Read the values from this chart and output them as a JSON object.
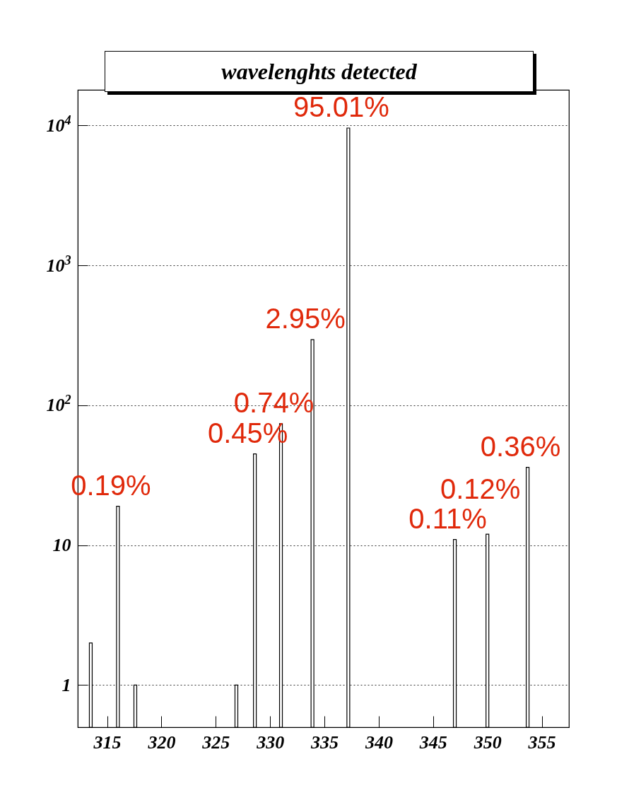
{
  "chart_data": {
    "type": "bar",
    "title": "wavelenghts detected",
    "x": [
      313.5,
      316.0,
      317.6,
      326.9,
      328.6,
      331.0,
      333.9,
      337.2,
      347.0,
      350.0,
      353.7
    ],
    "series": [
      {
        "color": "#000000",
        "values": [
          2,
          19,
          1,
          1,
          45,
          74,
          295,
          9600,
          11,
          12,
          36
        ]
      }
    ],
    "log": "y",
    "xlim": [
      312.3,
      357.5
    ],
    "xticks": [
      315,
      320,
      325,
      330,
      335,
      340,
      345,
      350,
      355
    ],
    "ylim": [
      0.5,
      18000
    ],
    "yticks": [
      1,
      10,
      {
        "value": 100,
        "label": "10$^{2}$"
      },
      {
        "value": 1000,
        "label": "10$^{3}$"
      },
      {
        "value": 10000,
        "label": "10$^{4}$"
      }
    ],
    "grid": "y",
    "annotations": [
      {
        "text": "0.19%",
        "x": 316.0,
        "y": 19
      },
      {
        "text": "0.45%",
        "x": 328.6,
        "y": 45
      },
      {
        "text": "0.74%",
        "x": 331.0,
        "y": 74
      },
      {
        "text": "2.95%",
        "x": 333.9,
        "y": 295
      },
      {
        "text": "95.01%",
        "x": 337.2,
        "y": 9600
      },
      {
        "text": "0.11%",
        "x": 347.0,
        "y": 11
      },
      {
        "text": "0.12%",
        "x": 350.0,
        "y": 12
      },
      {
        "text": "0.36%",
        "x": 353.7,
        "y": 36
      }
    ]
  }
}
